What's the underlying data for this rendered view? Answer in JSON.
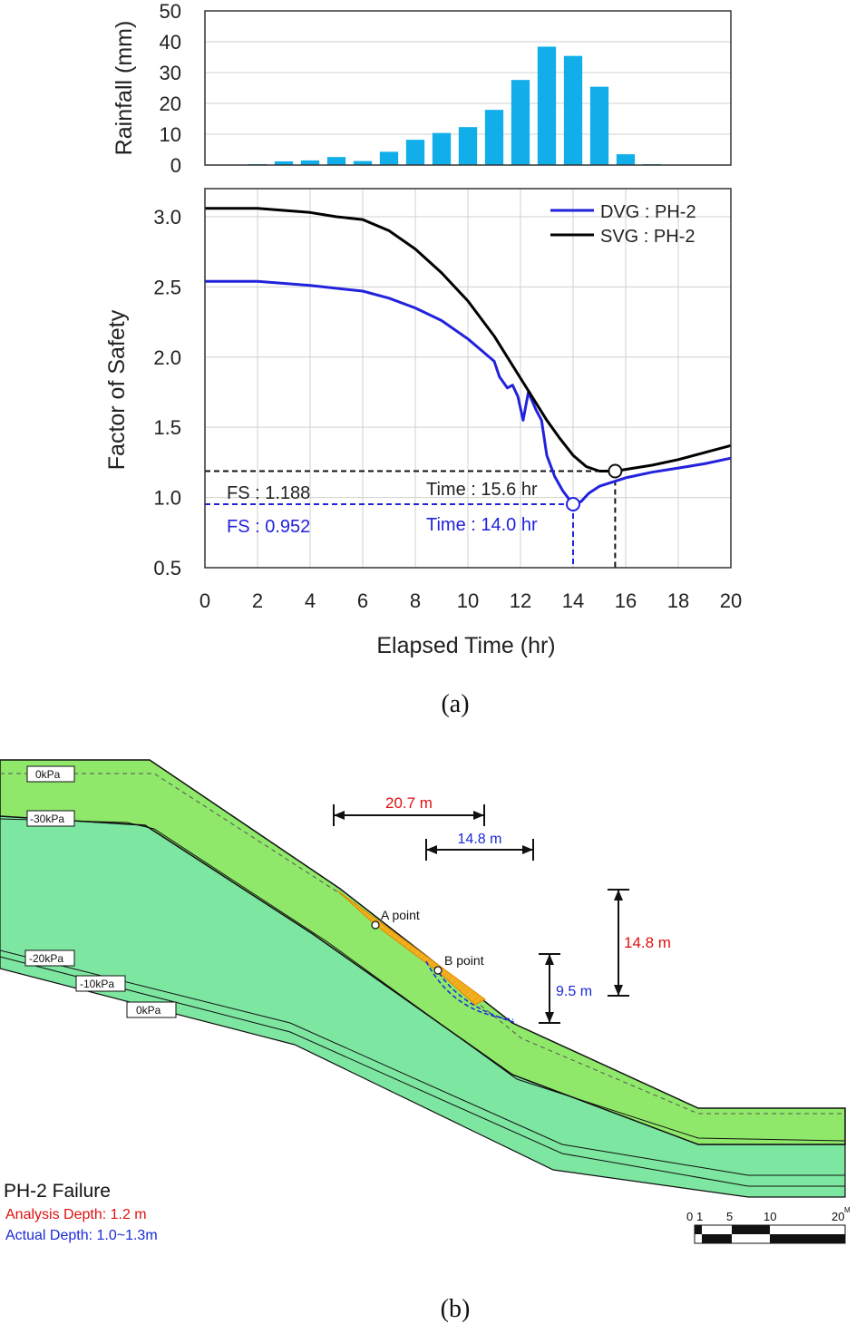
{
  "chart_data": [
    {
      "type": "bar",
      "ylabel": "Rainfall (mm)",
      "ylim": [
        0,
        50
      ],
      "yticks": [
        "0",
        "10",
        "20",
        "30",
        "40",
        "50"
      ],
      "xlim": [
        0,
        20
      ],
      "x": [
        2,
        3,
        4,
        5,
        6,
        7,
        8,
        9,
        10,
        11,
        12,
        13,
        14,
        15,
        16,
        17
      ],
      "values": [
        0.3,
        1.2,
        1.5,
        2.6,
        1.3,
        4.3,
        8.2,
        10.4,
        12.3,
        17.9,
        27.6,
        38.4,
        35.4,
        25.4,
        3.5,
        0.3
      ],
      "bar_color": "#11aeea",
      "grid": true
    },
    {
      "type": "line",
      "xlabel": "Elapsed Time (hr)",
      "ylabel": "Factor of Safety",
      "xlim": [
        0,
        20
      ],
      "ylim": [
        0.5,
        3.2
      ],
      "xticks": [
        "0",
        "2",
        "4",
        "6",
        "8",
        "10",
        "12",
        "14",
        "16",
        "18",
        "20"
      ],
      "yticks": [
        "0.5",
        "1.0",
        "1.5",
        "2.0",
        "2.5",
        "3.0"
      ],
      "grid": true,
      "legend_position": "top-right",
      "series": [
        {
          "name": "DVG : PH-2",
          "color": "#2222dd",
          "x": [
            0,
            2,
            4,
            6,
            7,
            8,
            9,
            10,
            10.5,
            11,
            11.2,
            11.5,
            11.7,
            11.9,
            12.1,
            12.3,
            12.6,
            12.8,
            13.0,
            13.3,
            13.6,
            13.8,
            13.95,
            14.0,
            14.3,
            14.6,
            15.0,
            15.5,
            16,
            17,
            18,
            19,
            20
          ],
          "y": [
            2.54,
            2.54,
            2.51,
            2.47,
            2.42,
            2.35,
            2.26,
            2.13,
            2.05,
            1.97,
            1.86,
            1.78,
            1.8,
            1.72,
            1.55,
            1.75,
            1.62,
            1.55,
            1.3,
            1.15,
            1.05,
            1.0,
            0.96,
            0.952,
            0.97,
            1.03,
            1.08,
            1.11,
            1.14,
            1.18,
            1.21,
            1.24,
            1.28
          ]
        },
        {
          "name": "SVG : PH-2",
          "color": "#000000",
          "x": [
            0,
            2,
            4,
            5,
            6,
            7,
            8,
            9,
            10,
            11,
            12,
            12.5,
            13,
            13.5,
            14,
            14.5,
            15.0,
            15.3,
            15.6,
            16,
            17,
            18,
            19,
            20
          ],
          "y": [
            3.06,
            3.06,
            3.03,
            3.0,
            2.98,
            2.9,
            2.77,
            2.6,
            2.4,
            2.15,
            1.85,
            1.7,
            1.55,
            1.42,
            1.3,
            1.22,
            1.188,
            1.188,
            1.188,
            1.2,
            1.23,
            1.27,
            1.32,
            1.37
          ]
        }
      ],
      "annotations": [
        {
          "label": "FS : 1.188",
          "time_label": "Time : 15.6 hr",
          "x": 15.6,
          "y": 1.188,
          "color": "#111111"
        },
        {
          "label": "FS : 0.952",
          "time_label": "Time : 14.0 hr",
          "x": 14.0,
          "y": 0.952,
          "color": "#2222dd"
        }
      ]
    }
  ],
  "labels": {
    "panel_a": "(a)",
    "panel_b": "(b)"
  },
  "section": {
    "pressure_labels": [
      "0kPa",
      "-30kPa",
      "-20kPa",
      "-10kPa",
      "0kPa"
    ],
    "dimension_red_width": "20.7 m",
    "dimension_blue_width": "14.8 m",
    "dimension_red_height": "14.8 m",
    "dimension_blue_height": "9.5 m",
    "point_a": "A point",
    "point_b": "B point",
    "title": "PH-2 Failure",
    "analysis_depth": "Analysis Depth: 1.2 m",
    "actual_depth": "Actual Depth: 1.0~1.3m",
    "scale_ticks": [
      "0",
      "1",
      "5",
      "10",
      "20"
    ],
    "scale_unit": "M",
    "colors": {
      "upper_layer": "#8fe86a",
      "lower_layer": "#7de6a0",
      "failure_zone": "#f5a623",
      "red": "#e01010",
      "blue": "#1a2ad8"
    }
  }
}
